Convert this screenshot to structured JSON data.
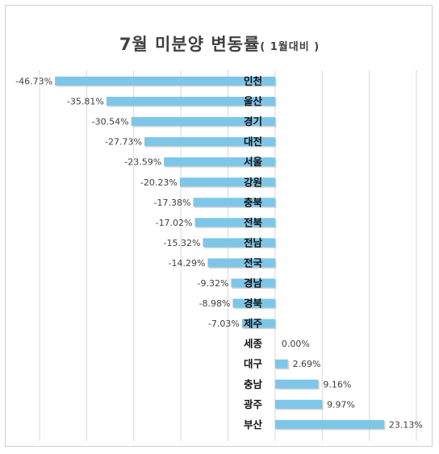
{
  "chart_data": {
    "type": "bar",
    "orientation": "horizontal",
    "title": "7월 미분양 변동률",
    "subtitle": "( 1월대비 )",
    "categories": [
      "인천",
      "울산",
      "경기",
      "대전",
      "서울",
      "강원",
      "충북",
      "전북",
      "전남",
      "전국",
      "경남",
      "경북",
      "제주",
      "세종",
      "대구",
      "충남",
      "광주",
      "부산"
    ],
    "values": [
      -46.73,
      -35.81,
      -30.54,
      -27.73,
      -23.59,
      -20.23,
      -17.38,
      -17.02,
      -15.32,
      -14.29,
      -9.32,
      -8.98,
      -7.03,
      0.0,
      2.69,
      9.16,
      9.97,
      23.13
    ],
    "value_labels": [
      "-46.73%",
      "-35.81%",
      "-30.54%",
      "-27.73%",
      "-23.59%",
      "-20.23%",
      "-17.38%",
      "-17.02%",
      "-15.32%",
      "-14.29%",
      "-9.32%",
      "-8.98%",
      "-7.03%",
      "0.00%",
      "2.69%",
      "9.16%",
      "9.97%",
      "23.13%"
    ],
    "xlim": [
      -50,
      30
    ],
    "grid": true,
    "bar_color": "#7ec6e8",
    "grid_color": "#d9d9d9",
    "legend": "none"
  }
}
